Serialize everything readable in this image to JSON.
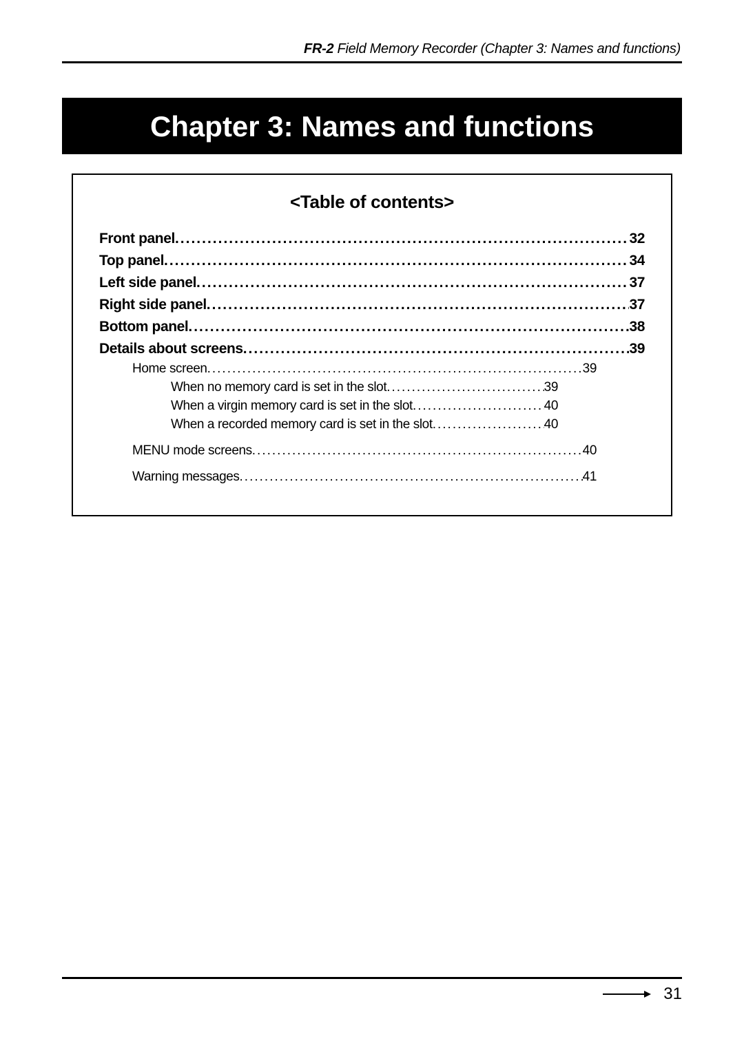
{
  "header": {
    "prefix_bold": "FR-2",
    "suffix_italic": " Field Memory Recorder (Chapter 3: Names and functions)"
  },
  "chapter_title": "Chapter 3: Names and functions",
  "toc": {
    "heading": "<Table of contents>",
    "entries": [
      {
        "level": 1,
        "label": "Front panel",
        "page": "32"
      },
      {
        "level": 1,
        "label": "Top panel",
        "page": "34"
      },
      {
        "level": 1,
        "label": "Left side panel",
        "page": "37"
      },
      {
        "level": 1,
        "label": "Right side panel",
        "page": "37"
      },
      {
        "level": 1,
        "label": "Bottom panel",
        "page": "38"
      },
      {
        "level": 1,
        "label": "Details about screens",
        "page": "39"
      },
      {
        "level": 2,
        "label": "Home screen",
        "page": "39"
      },
      {
        "level": 3,
        "label": "When no memory card is set in the slot",
        "page": "39"
      },
      {
        "level": 3,
        "label": "When a virgin memory card is set in the slot",
        "page": "40"
      },
      {
        "level": 3,
        "label": "When a recorded memory card is set in the slot",
        "page": "40"
      },
      {
        "level": 2,
        "label": "MENU mode screens",
        "page": "40",
        "extra_top": true
      },
      {
        "level": 2,
        "label": "Warning messages",
        "page": "41",
        "extra_top": true
      }
    ]
  },
  "footer": {
    "page_number": "31"
  },
  "colors": {
    "text": "#000000",
    "background": "#ffffff",
    "banner_bg": "#000000",
    "banner_fg": "#ffffff",
    "rule": "#000000"
  }
}
